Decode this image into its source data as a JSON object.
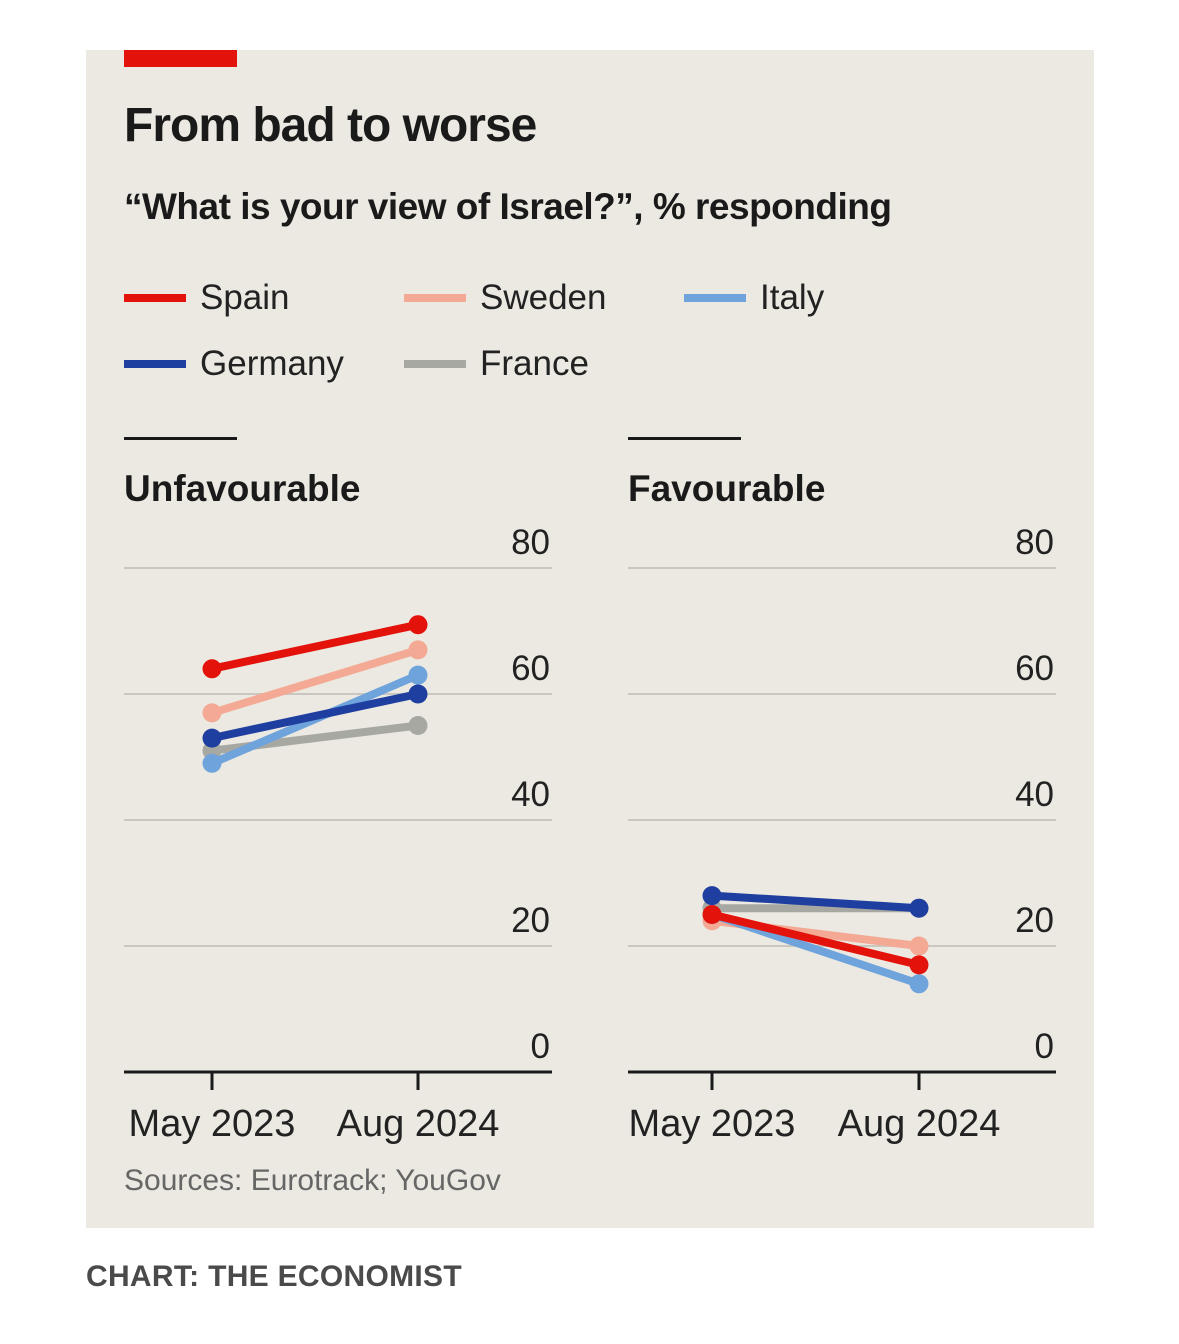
{
  "title": "From bad to worse",
  "subtitle": "“What is your view of Israel?”, % responding",
  "legend": [
    {
      "name": "Spain",
      "color": "#e3120b"
    },
    {
      "name": "Sweden",
      "color": "#f4a994"
    },
    {
      "name": "Italy",
      "color": "#6fa3dc"
    },
    {
      "name": "Germany",
      "color": "#1f3fa0"
    },
    {
      "name": "France",
      "color": "#a8a8a2"
    }
  ],
  "source": "Sources: Eurotrack; YouGov",
  "credit": "CHART: THE ECONOMIST",
  "chart_data": [
    {
      "type": "line",
      "title": "Unfavourable",
      "x": [
        "May 2023",
        "Aug 2024"
      ],
      "ylim": [
        0,
        80
      ],
      "yticks": [
        0,
        20,
        40,
        60,
        80
      ],
      "grid": true,
      "series": [
        {
          "name": "France",
          "color": "#a8a8a2",
          "values": [
            51,
            55
          ]
        },
        {
          "name": "Italy",
          "color": "#6fa3dc",
          "values": [
            49,
            63
          ]
        },
        {
          "name": "Germany",
          "color": "#1f3fa0",
          "values": [
            53,
            60
          ]
        },
        {
          "name": "Sweden",
          "color": "#f4a994",
          "values": [
            57,
            67
          ]
        },
        {
          "name": "Spain",
          "color": "#e3120b",
          "values": [
            64,
            71
          ]
        }
      ]
    },
    {
      "type": "line",
      "title": "Favourable",
      "x": [
        "May 2023",
        "Aug 2024"
      ],
      "ylim": [
        0,
        80
      ],
      "yticks": [
        0,
        20,
        40,
        60,
        80
      ],
      "grid": true,
      "series": [
        {
          "name": "France",
          "color": "#a8a8a2",
          "values": [
            26,
            26
          ]
        },
        {
          "name": "Sweden",
          "color": "#f4a994",
          "values": [
            24,
            20
          ]
        },
        {
          "name": "Italy",
          "color": "#6fa3dc",
          "values": [
            25,
            14
          ]
        },
        {
          "name": "Spain",
          "color": "#e3120b",
          "values": [
            25,
            17
          ]
        },
        {
          "name": "Germany",
          "color": "#1f3fa0",
          "values": [
            28,
            26
          ]
        }
      ]
    }
  ]
}
